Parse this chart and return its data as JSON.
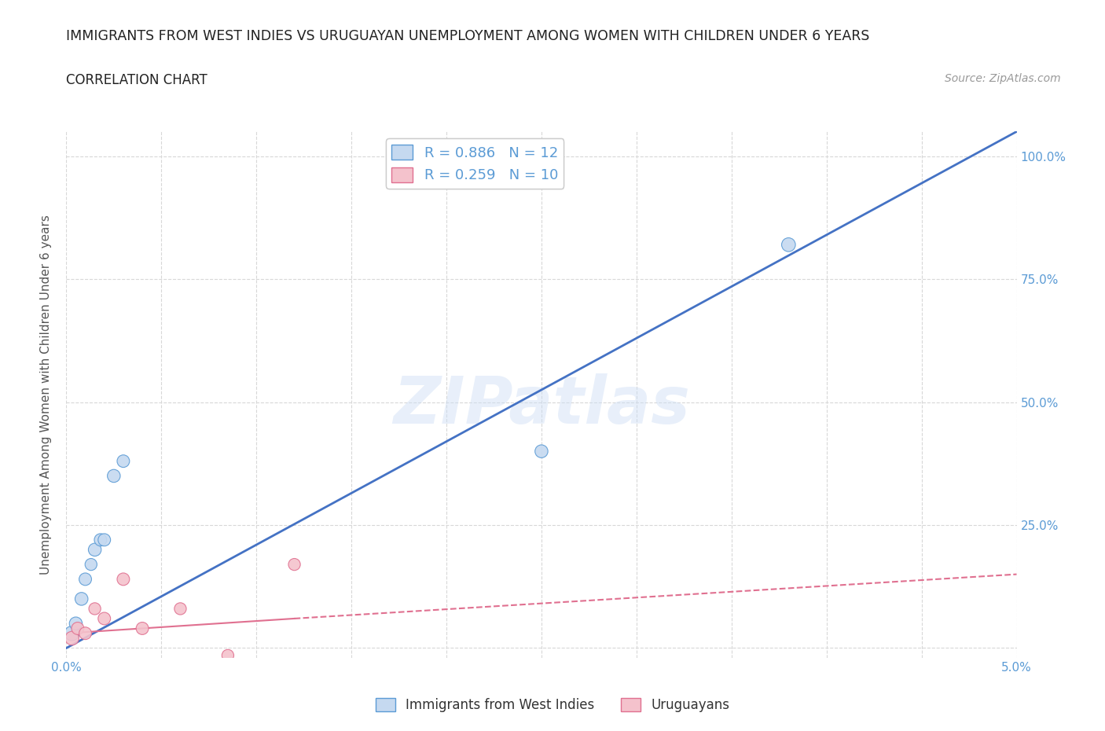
{
  "title": "IMMIGRANTS FROM WEST INDIES VS URUGUAYAN UNEMPLOYMENT AMONG WOMEN WITH CHILDREN UNDER 6 YEARS",
  "subtitle": "CORRELATION CHART",
  "source": "Source: ZipAtlas.com",
  "ylabel": "Unemployment Among Women with Children Under 6 years",
  "xlim": [
    0.0,
    0.05
  ],
  "ylim": [
    -0.02,
    1.05
  ],
  "x_ticks": [
    0.0,
    0.005,
    0.01,
    0.015,
    0.02,
    0.025,
    0.03,
    0.035,
    0.04,
    0.045,
    0.05
  ],
  "x_tick_labels": [
    "0.0%",
    "",
    "",
    "",
    "",
    "",
    "",
    "",
    "",
    "",
    "5.0%"
  ],
  "y_ticks": [
    0.0,
    0.25,
    0.5,
    0.75,
    1.0
  ],
  "y_tick_labels": [
    "",
    "25.0%",
    "50.0%",
    "75.0%",
    "100.0%"
  ],
  "watermark_text": "ZIPatlas",
  "blue_scatter_x": [
    0.0003,
    0.0005,
    0.0008,
    0.001,
    0.0013,
    0.0015,
    0.0018,
    0.002,
    0.0025,
    0.003,
    0.025,
    0.038
  ],
  "blue_scatter_y": [
    0.03,
    0.05,
    0.1,
    0.14,
    0.17,
    0.2,
    0.22,
    0.22,
    0.35,
    0.38,
    0.4,
    0.82
  ],
  "blue_scatter_sizes": [
    180,
    140,
    140,
    130,
    120,
    140,
    130,
    130,
    140,
    130,
    140,
    160
  ],
  "blue_fill_color": "#c5d9f0",
  "blue_edge_color": "#5b9bd5",
  "pink_scatter_x": [
    0.0003,
    0.0006,
    0.001,
    0.0015,
    0.002,
    0.003,
    0.004,
    0.006,
    0.0085,
    0.012
  ],
  "pink_scatter_y": [
    0.02,
    0.04,
    0.03,
    0.08,
    0.06,
    0.14,
    0.04,
    0.08,
    -0.015,
    0.17
  ],
  "pink_scatter_sizes": [
    160,
    130,
    130,
    120,
    130,
    130,
    130,
    120,
    120,
    120
  ],
  "pink_fill_color": "#f4c2cc",
  "pink_edge_color": "#e07090",
  "blue_line_color": "#4472c4",
  "pink_line_color": "#e07090",
  "legend_label_blue": "R = 0.886   N = 12",
  "legend_label_pink": "R = 0.259   N = 10",
  "legend_bottom_blue": "Immigrants from West Indies",
  "legend_bottom_pink": "Uruguayans",
  "background_color": "#ffffff",
  "grid_color": "#d8d8d8",
  "title_color": "#222222",
  "ylabel_color": "#555555",
  "tick_label_color": "#5b9bd5"
}
